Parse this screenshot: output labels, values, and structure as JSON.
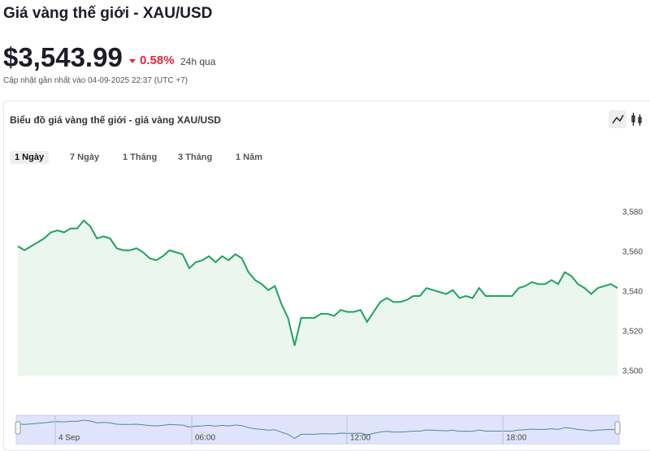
{
  "header": {
    "title": "Giá vàng thế giới - XAU/USD",
    "price": "$3,543.99",
    "change": "0.58%",
    "period": "24h qua",
    "updated": "Cập nhật gần nhất vào 04-09-2025 22:37 (UTC +7)"
  },
  "chart_data": {
    "type": "line",
    "title": "Biểu đồ giá vàng thế giới - giá vàng XAU/USD",
    "tabs": [
      "1 Ngày",
      "7 Ngày",
      "1 Tháng",
      "3 Tháng",
      "1 Năm"
    ],
    "color": "#1fa35c",
    "values": [
      3563,
      3561,
      3563,
      3565,
      3567,
      3570,
      3571,
      3570,
      3572,
      3572,
      3576,
      3573,
      3567,
      3568,
      3567,
      3562,
      3561,
      3561,
      3562,
      3560,
      3557,
      3556,
      3558,
      3561,
      3560,
      3559,
      3552,
      3555,
      3556,
      3558,
      3555,
      3558,
      3556,
      3559,
      3557,
      3550,
      3546,
      3544,
      3541,
      3543,
      3534,
      3527,
      3513,
      3527,
      3527,
      3527,
      3529,
      3529,
      3528,
      3531,
      3530,
      3530,
      3531,
      3525,
      3530,
      3535,
      3537,
      3535,
      3535,
      3536,
      3538,
      3538,
      3542,
      3541,
      3540,
      3539,
      3541,
      3537,
      3538,
      3537,
      3542,
      3538,
      3538,
      3538,
      3538,
      3538,
      3542,
      3543,
      3545,
      3544,
      3544,
      3546,
      3544,
      3550,
      3548,
      3544,
      3542,
      3539,
      3542,
      3543,
      3544,
      3542
    ],
    "ylim": [
      3500,
      3590
    ],
    "yticks": [
      {
        "value": 3500,
        "label": "3,500"
      },
      {
        "value": 3520,
        "label": "3,520"
      },
      {
        "value": 3540,
        "label": "3,540"
      },
      {
        "value": 3560,
        "label": "3,560"
      },
      {
        "value": 3580,
        "label": "3,580"
      }
    ],
    "navigator_labels": [
      "4 Sep",
      "06:00",
      "12:00",
      "18:00"
    ]
  }
}
